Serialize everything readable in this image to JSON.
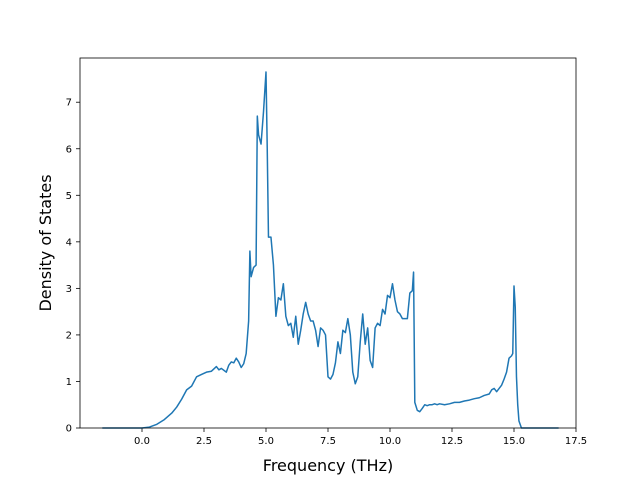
{
  "chart_data": {
    "type": "line",
    "title": "",
    "xlabel": "Frequency (THz)",
    "ylabel": "Density of States",
    "xlim": [
      -2.5,
      17.5
    ],
    "ylim": [
      0,
      7.95
    ],
    "xticks": [
      0.0,
      2.5,
      5.0,
      7.5,
      10.0,
      12.5,
      15.0,
      17.5
    ],
    "xtick_labels": [
      "0.0",
      "2.5",
      "5.0",
      "7.5",
      "10.0",
      "12.5",
      "15.0",
      "17.5"
    ],
    "yticks": [
      0,
      1,
      2,
      3,
      4,
      5,
      6,
      7
    ],
    "ytick_labels": [
      "0",
      "1",
      "2",
      "3",
      "4",
      "5",
      "6",
      "7"
    ],
    "grid": false,
    "line_color": "#1f77b4",
    "series": [
      {
        "x": [
          -1.6,
          0.0,
          0.3,
          0.6,
          0.9,
          1.2,
          1.4,
          1.6,
          1.8,
          2.0,
          2.2,
          2.4,
          2.6,
          2.8,
          3.0,
          3.1,
          3.2,
          3.4,
          3.5,
          3.6,
          3.7,
          3.8,
          3.9,
          4.0,
          4.1,
          4.2,
          4.3,
          4.35,
          4.4,
          4.5,
          4.6,
          4.65,
          4.7,
          4.8,
          4.9,
          5.0,
          5.05,
          5.1,
          5.2,
          5.3,
          5.4,
          5.5,
          5.6,
          5.7,
          5.8,
          5.9,
          6.0,
          6.1,
          6.2,
          6.3,
          6.4,
          6.5,
          6.6,
          6.7,
          6.8,
          6.9,
          7.0,
          7.1,
          7.2,
          7.3,
          7.4,
          7.5,
          7.6,
          7.7,
          7.8,
          7.9,
          8.0,
          8.1,
          8.2,
          8.3,
          8.4,
          8.5,
          8.6,
          8.7,
          8.8,
          8.9,
          9.0,
          9.1,
          9.2,
          9.3,
          9.4,
          9.5,
          9.6,
          9.7,
          9.8,
          9.9,
          10.0,
          10.1,
          10.2,
          10.3,
          10.4,
          10.5,
          10.6,
          10.7,
          10.8,
          10.9,
          10.95,
          11.0,
          11.1,
          11.2,
          11.3,
          11.4,
          11.5,
          11.6,
          11.7,
          11.8,
          11.9,
          12.0,
          12.2,
          12.4,
          12.6,
          12.8,
          13.0,
          13.2,
          13.4,
          13.6,
          13.8,
          14.0,
          14.1,
          14.2,
          14.3,
          14.4,
          14.5,
          14.6,
          14.7,
          14.8,
          14.9,
          14.95,
          15.0,
          15.05,
          15.1,
          15.15,
          15.2,
          15.3,
          15.5,
          16.0,
          16.8
        ],
        "y": [
          0.0,
          0.0,
          0.02,
          0.08,
          0.18,
          0.32,
          0.45,
          0.62,
          0.82,
          0.9,
          1.1,
          1.15,
          1.2,
          1.22,
          1.32,
          1.25,
          1.28,
          1.2,
          1.35,
          1.42,
          1.4,
          1.5,
          1.42,
          1.3,
          1.38,
          1.6,
          2.3,
          3.8,
          3.25,
          3.45,
          3.5,
          6.7,
          6.3,
          6.1,
          6.8,
          7.65,
          6.0,
          4.1,
          4.1,
          3.5,
          2.4,
          2.8,
          2.75,
          3.1,
          2.4,
          2.2,
          2.25,
          1.95,
          2.4,
          1.8,
          2.1,
          2.45,
          2.7,
          2.45,
          2.3,
          2.3,
          2.1,
          1.75,
          2.15,
          2.1,
          2.0,
          1.1,
          1.05,
          1.15,
          1.4,
          1.85,
          1.6,
          2.1,
          2.05,
          2.35,
          2.0,
          1.2,
          0.95,
          1.1,
          1.85,
          2.45,
          1.8,
          2.15,
          1.45,
          1.3,
          2.15,
          2.25,
          2.2,
          2.55,
          2.45,
          2.85,
          2.8,
          3.1,
          2.75,
          2.5,
          2.45,
          2.35,
          2.35,
          2.35,
          2.9,
          2.95,
          3.35,
          0.55,
          0.38,
          0.35,
          0.42,
          0.5,
          0.48,
          0.5,
          0.5,
          0.52,
          0.5,
          0.52,
          0.5,
          0.52,
          0.55,
          0.55,
          0.58,
          0.6,
          0.63,
          0.65,
          0.7,
          0.73,
          0.82,
          0.85,
          0.78,
          0.85,
          0.92,
          1.05,
          1.2,
          1.5,
          1.55,
          1.6,
          3.05,
          2.6,
          1.1,
          0.5,
          0.15,
          0.0,
          0.0,
          0.0,
          0.0
        ]
      }
    ]
  }
}
